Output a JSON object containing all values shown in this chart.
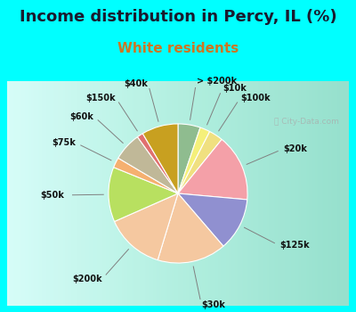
{
  "title": "Income distribution in Percy, IL (%)",
  "subtitle": "White residents",
  "bg_cyan": "#00FFFF",
  "title_color": "#1a1a2e",
  "subtitle_color": "#cc7722",
  "labels": [
    "> $200k",
    "$10k",
    "$100k",
    "$20k",
    "$125k",
    "$30k",
    "$200k",
    "$50k",
    "$75k",
    "$60k",
    "$150k",
    "$40k"
  ],
  "sizes": [
    5.5,
    2.5,
    3.5,
    16.5,
    13.0,
    17.0,
    14.5,
    13.5,
    2.5,
    7.0,
    1.5,
    9.0
  ],
  "colors": [
    "#8fbc8f",
    "#f5f07a",
    "#f0e080",
    "#f4a0a8",
    "#9090d0",
    "#f5c8a0",
    "#f5c8a0",
    "#b8e060",
    "#f5b070",
    "#c0b898",
    "#e07070",
    "#c8a020"
  ],
  "title_fontsize": 13,
  "subtitle_fontsize": 11,
  "watermark": "City-Data.com"
}
